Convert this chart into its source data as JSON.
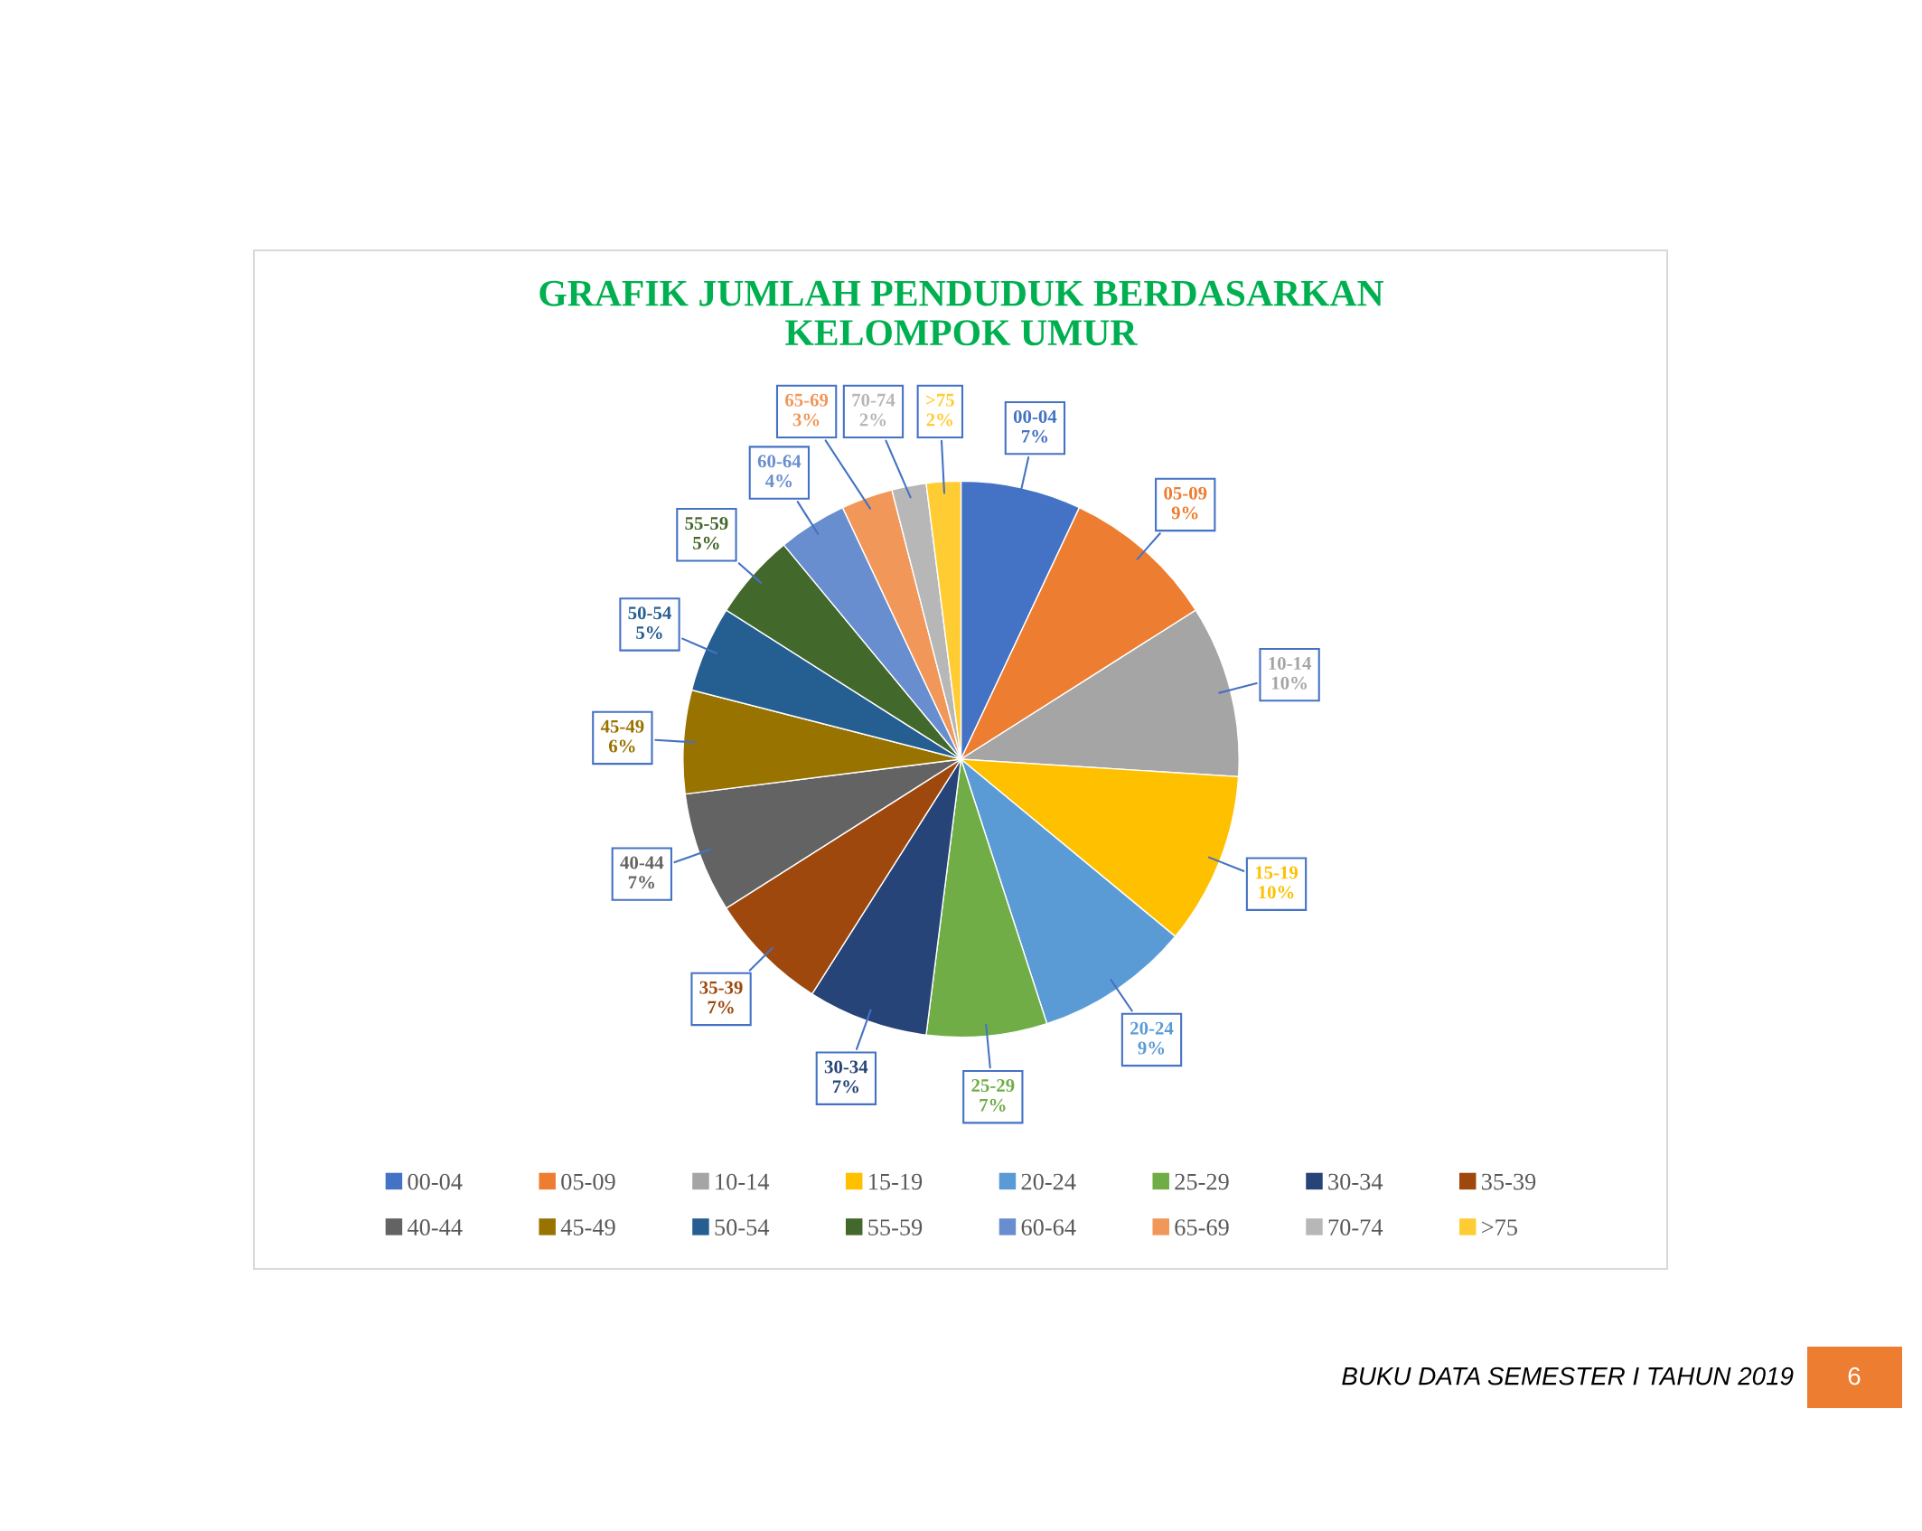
{
  "chart_data": {
    "type": "pie",
    "title": "GRAFIK JUMLAH PENDUDUK BERDASARKAN\nKELOMPOK UMUR",
    "categories": [
      "00-04",
      "05-09",
      "10-14",
      "15-19",
      "20-24",
      "25-29",
      "30-34",
      "35-39",
      "40-44",
      "45-49",
      "50-54",
      "55-59",
      "60-64",
      "65-69",
      "70-74",
      ">75"
    ],
    "values": [
      7,
      9,
      10,
      10,
      9,
      7,
      7,
      7,
      7,
      6,
      5,
      5,
      4,
      3,
      2,
      2
    ],
    "value_labels": [
      "7%",
      "9%",
      "10%",
      "10%",
      "9%",
      "7%",
      "7%",
      "7%",
      "7%",
      "6%",
      "5%",
      "5%",
      "4%",
      "3%",
      "2%",
      "2%"
    ],
    "colors": [
      "#4472c4",
      "#ed7d31",
      "#a5a5a5",
      "#ffc000",
      "#5b9bd5",
      "#70ad47",
      "#264478",
      "#9e480e",
      "#636363",
      "#997300",
      "#255e91",
      "#43682b",
      "#698ed0",
      "#f1975a",
      "#b7b7b7",
      "#ffcd33"
    ],
    "legend": "bottom",
    "annotations": [
      "BUKU DATA SEMESTER I TAHUN 2019",
      "6"
    ]
  }
}
